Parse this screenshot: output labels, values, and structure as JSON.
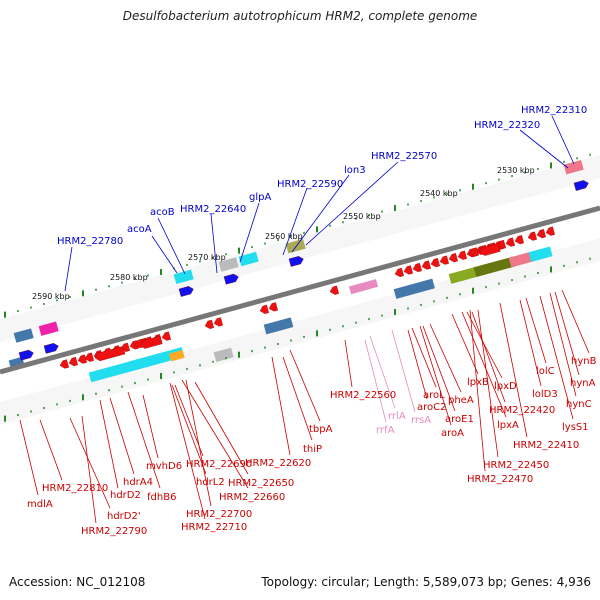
{
  "title": "Desulfobacterium autotrophicum HRM2, complete genome",
  "accession_text": "Accession: NC_012108",
  "topology_text": "Topology: circular; Length: 5,589,073 bp; Genes: 4,936",
  "colors": {
    "red_gene": "#ee1111",
    "blue_gene": "#1111ee",
    "red_label": "#cc0000",
    "blue_label": "#0000cc",
    "rna_pink": "#e68ac0",
    "backbone": "#777777",
    "tick": "#228822"
  },
  "scale_labels": [
    "2590 kbp",
    "2580 kbp",
    "2570 kbp",
    "2560 kbp",
    "2550 kbp",
    "2540 kbp",
    "2530 kbp"
  ],
  "top_labels": [
    "HRM2_22780",
    "acoA",
    "acoB",
    "HRM2_22640",
    "glpA",
    "HRM2_22590",
    "lon3",
    "HRM2_22570",
    "HRM2_22320",
    "HRM2_22310"
  ],
  "bottom_labels": [
    "mdlA",
    "HRM2_22810",
    "hdrD2'",
    "HRM2_22790",
    "hdrD2",
    "hdrA4",
    "mvhD6",
    "fdhB6",
    "HRM2_22690",
    "hdrL2",
    "HRM2_22700",
    "HRM2_22710",
    "HRM2_22650",
    "HRM2_22660",
    "thiP",
    "HRM2_22620",
    "tbpA",
    "HRM2_22560",
    "rrlA",
    "rrfA",
    "rrsA",
    "aroC2",
    "aroL",
    "aroE1",
    "aroA",
    "pheA",
    "lpxA",
    "lpxB",
    "lpxD",
    "HRM2_22420",
    "HRM2_22450",
    "HRM2_22470",
    "lolD3",
    "lolC",
    "HRM2_22410",
    "lysS1",
    "hynC",
    "hynA",
    "hynB"
  ]
}
